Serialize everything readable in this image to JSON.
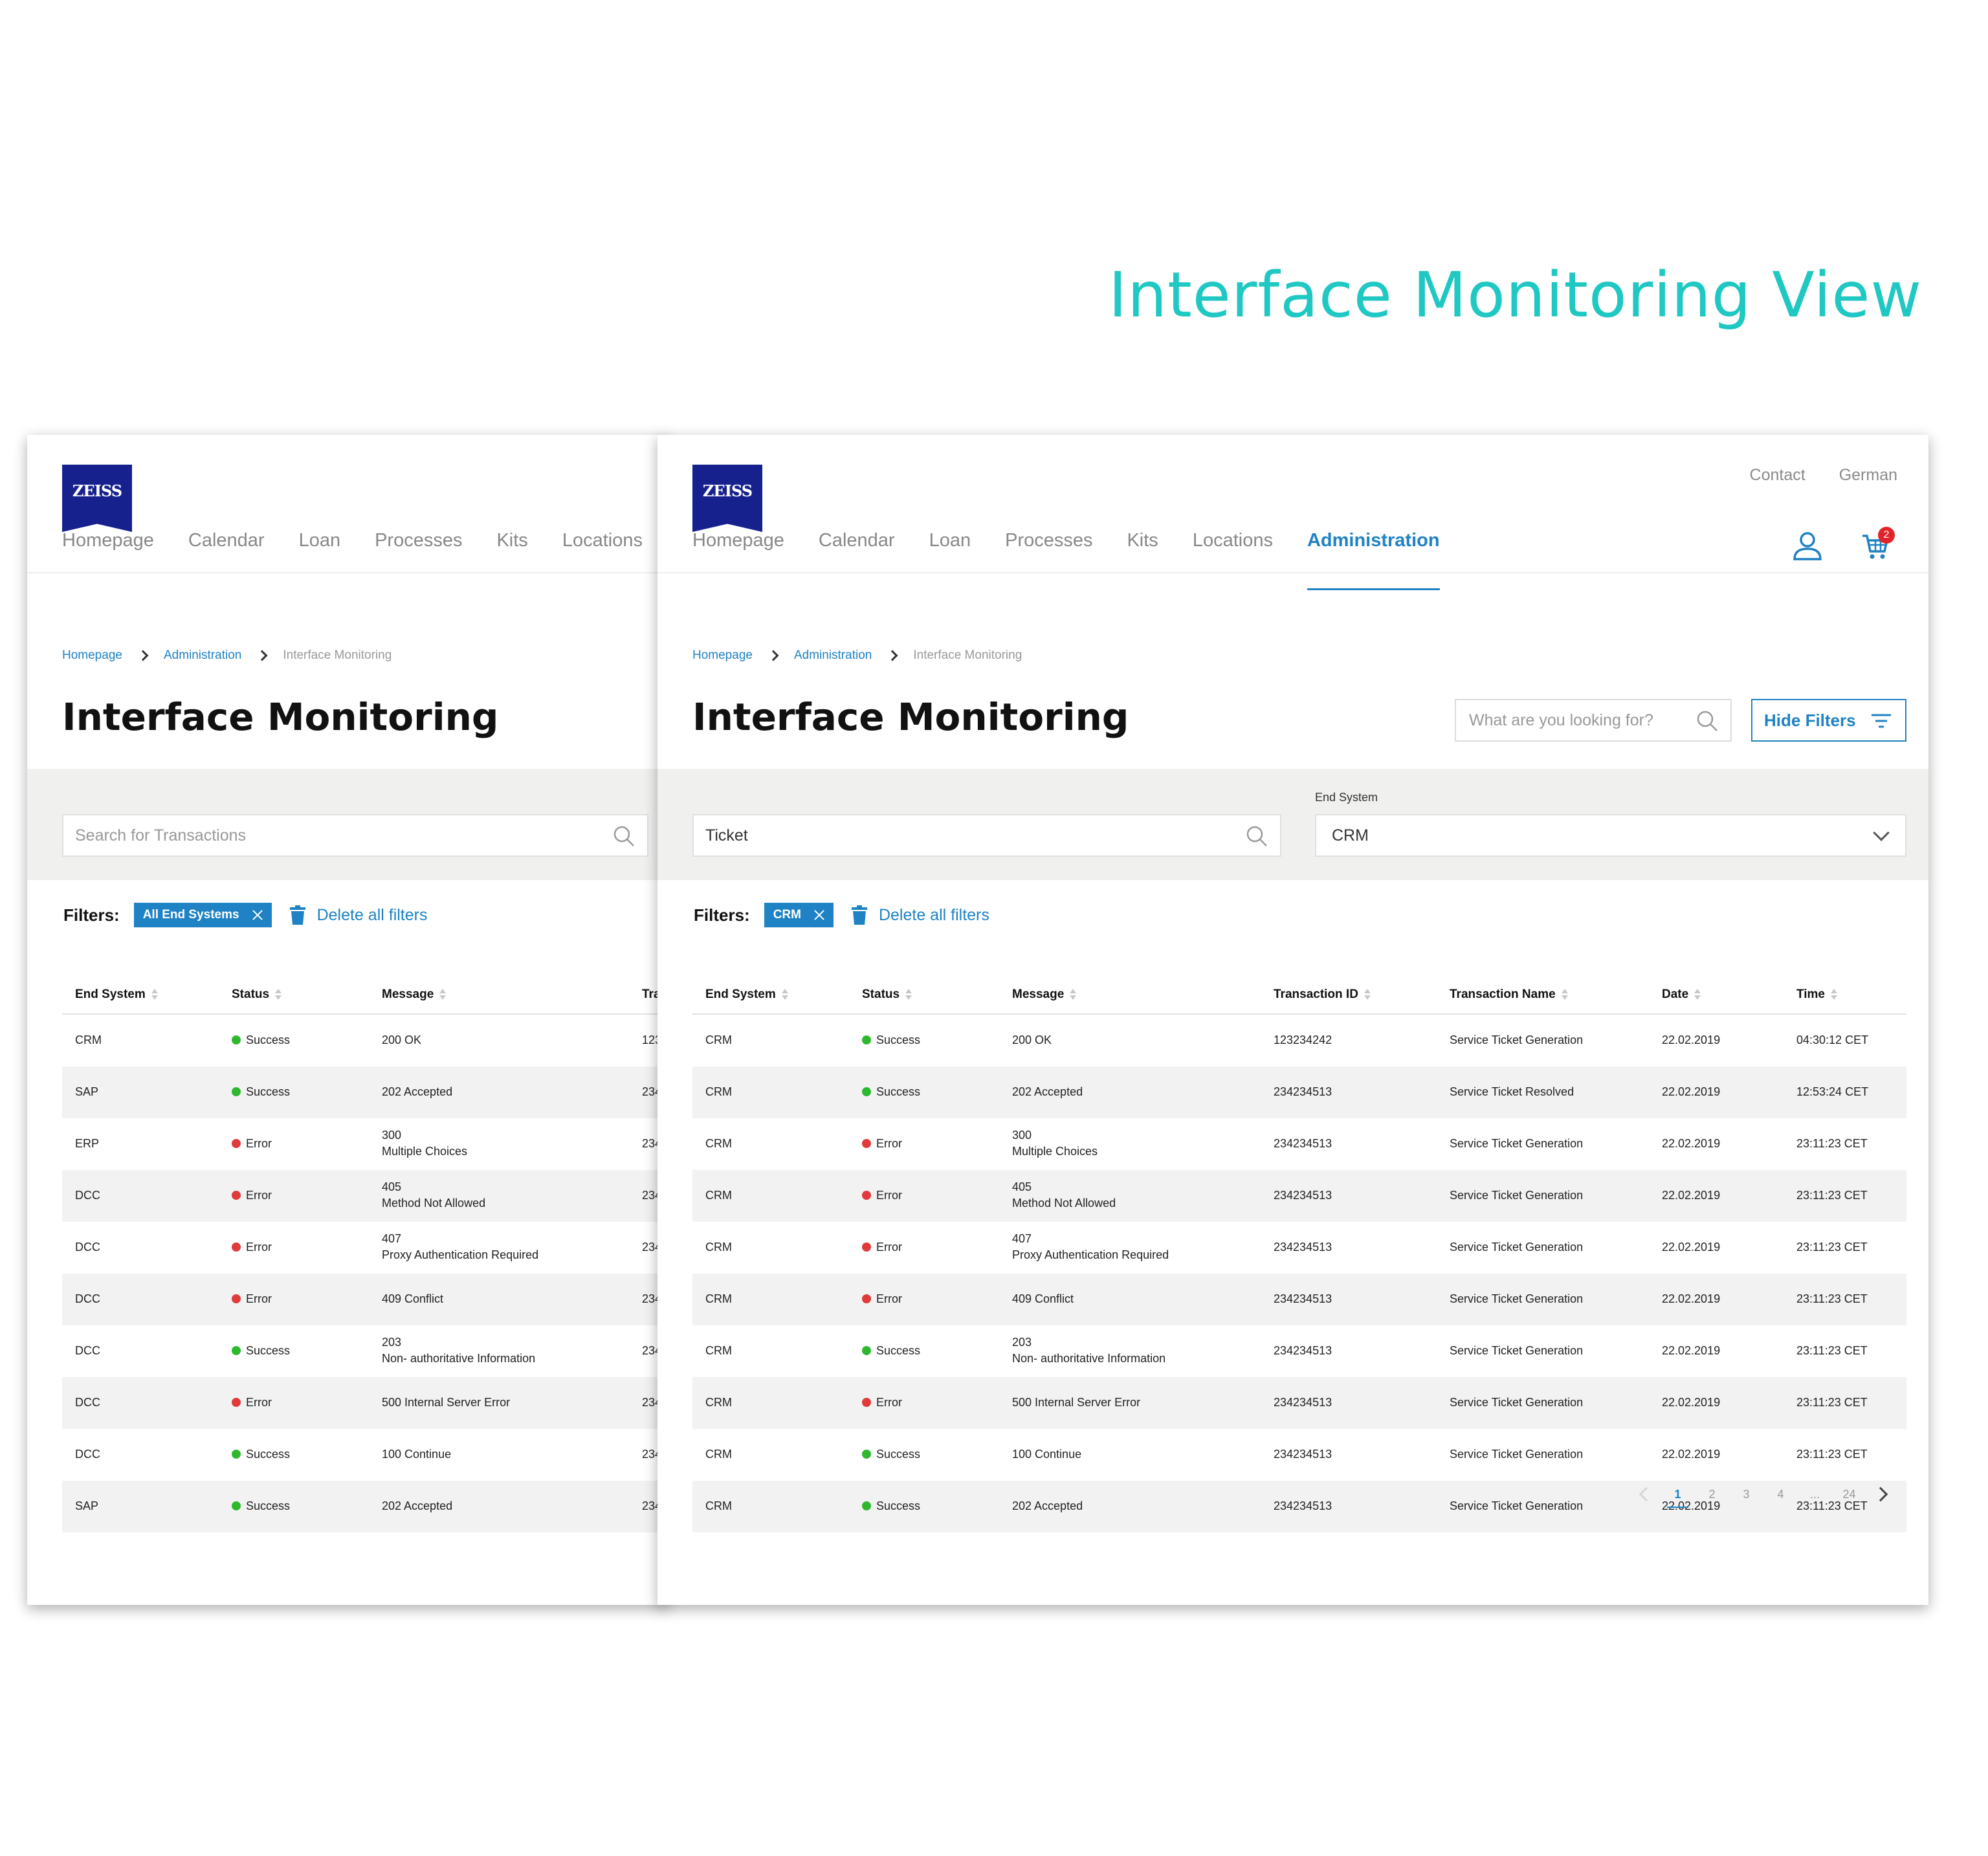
{
  "headline": "Interface Monitoring View",
  "logo_text": "ZEISS",
  "top_links": [
    "Contact",
    "German"
  ],
  "nav_items": [
    "Homepage",
    "Calendar",
    "Loan",
    "Processes",
    "Kits",
    "Locations",
    "Administration"
  ],
  "active_nav": "Administration",
  "cart_count": "2",
  "breadcrumb": [
    "Homepage",
    "Administration",
    "Interface Monitoring"
  ],
  "page_title": "Interface Monitoring",
  "header_search_placeholder": "What are you looking for?",
  "hide_filters_label": "Hide Filters",
  "back_view": {
    "search_placeholder": "Search for Transactions",
    "filter_chip": "All End Systems",
    "columns": [
      "End System",
      "Status",
      "Message",
      "Tra"
    ],
    "rows": [
      {
        "end_system": "CRM",
        "status": "Success",
        "msg1": "200 OK",
        "msg2": "",
        "tid": "123"
      },
      {
        "end_system": "SAP",
        "status": "Success",
        "msg1": "202 Accepted",
        "msg2": "",
        "tid": "234"
      },
      {
        "end_system": "ERP",
        "status": "Error",
        "msg1": "300",
        "msg2": "Multiple Choices",
        "tid": "234"
      },
      {
        "end_system": "DCC",
        "status": "Error",
        "msg1": "405",
        "msg2": "Method  Not Allowed",
        "tid": "234"
      },
      {
        "end_system": "DCC",
        "status": "Error",
        "msg1": "407",
        "msg2": "Proxy Authentication Required",
        "tid": "234"
      },
      {
        "end_system": "DCC",
        "status": "Error",
        "msg1": "409 Conflict",
        "msg2": "",
        "tid": "234"
      },
      {
        "end_system": "DCC",
        "status": "Success",
        "msg1": "203",
        "msg2": "Non- authoritative Information",
        "tid": "234"
      },
      {
        "end_system": "DCC",
        "status": "Error",
        "msg1": "500 Internal Server Error",
        "msg2": "",
        "tid": "234"
      },
      {
        "end_system": "DCC",
        "status": "Success",
        "msg1": "100 Continue",
        "msg2": "",
        "tid": "234"
      },
      {
        "end_system": "SAP",
        "status": "Success",
        "msg1": "202 Accepted",
        "msg2": "",
        "tid": "234"
      }
    ]
  },
  "front_view": {
    "search_value": "Ticket",
    "end_system_label": "End System",
    "end_system_value": "CRM",
    "filters_label": "Filters:",
    "filter_chip": "CRM",
    "delete_all_label": "Delete all filters",
    "columns": [
      "End System",
      "Status",
      "Message",
      "Transaction ID",
      "Transaction Name",
      "Date",
      "Time"
    ],
    "rows": [
      {
        "end_system": "CRM",
        "status": "Success",
        "msg1": "200 OK",
        "msg2": "",
        "tid": "123234242",
        "tname": "Service Ticket Generation",
        "date": "22.02.2019",
        "time": "04:30:12 CET"
      },
      {
        "end_system": "CRM",
        "status": "Success",
        "msg1": "202 Accepted",
        "msg2": "",
        "tid": "234234513",
        "tname": "Service Ticket Resolved",
        "date": "22.02.2019",
        "time": "12:53:24 CET"
      },
      {
        "end_system": "CRM",
        "status": "Error",
        "msg1": "300",
        "msg2": "Multiple Choices",
        "tid": "234234513",
        "tname": "Service Ticket Generation",
        "date": "22.02.2019",
        "time": "23:11:23 CET"
      },
      {
        "end_system": "CRM",
        "status": "Error",
        "msg1": "405",
        "msg2": "Method  Not Allowed",
        "tid": "234234513",
        "tname": "Service Ticket Generation",
        "date": "22.02.2019",
        "time": "23:11:23 CET"
      },
      {
        "end_system": "CRM",
        "status": "Error",
        "msg1": "407",
        "msg2": "Proxy Authentication Required",
        "tid": "234234513",
        "tname": "Service Ticket Generation",
        "date": "22.02.2019",
        "time": "23:11:23 CET"
      },
      {
        "end_system": "CRM",
        "status": "Error",
        "msg1": "409 Conflict",
        "msg2": "",
        "tid": "234234513",
        "tname": "Service Ticket Generation",
        "date": "22.02.2019",
        "time": "23:11:23 CET"
      },
      {
        "end_system": "CRM",
        "status": "Success",
        "msg1": "203",
        "msg2": "Non- authoritative Information",
        "tid": "234234513",
        "tname": "Service Ticket Generation",
        "date": "22.02.2019",
        "time": "23:11:23 CET"
      },
      {
        "end_system": "CRM",
        "status": "Error",
        "msg1": "500 Internal Server Error",
        "msg2": "",
        "tid": "234234513",
        "tname": "Service Ticket Generation",
        "date": "22.02.2019",
        "time": "23:11:23 CET"
      },
      {
        "end_system": "CRM",
        "status": "Success",
        "msg1": "100 Continue",
        "msg2": "",
        "tid": "234234513",
        "tname": "Service Ticket Generation",
        "date": "22.02.2019",
        "time": "23:11:23 CET"
      },
      {
        "end_system": "CRM",
        "status": "Success",
        "msg1": "202 Accepted",
        "msg2": "",
        "tid": "234234513",
        "tname": "Service Ticket Generation",
        "date": "22.02.2019",
        "time": "23:11:23 CET"
      }
    ],
    "pagination": [
      "1",
      "2",
      "3",
      "4",
      "...",
      "24"
    ],
    "active_page": "1"
  },
  "colors": {
    "accent": "#1f82c4",
    "headline": "#1fc8c2",
    "logo": "#16218e",
    "success": "#2eb82e",
    "error": "#e03a3a"
  }
}
